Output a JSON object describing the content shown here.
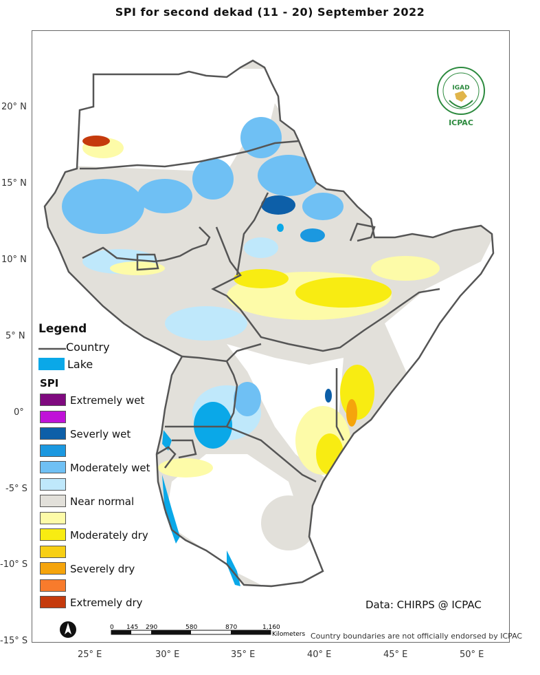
{
  "title": "SPI   for   second  dekad (11 - 20)  September 2022",
  "lat_labels": [
    "20° N",
    "15° N",
    "10° N",
    "5° N",
    "0°",
    "-5° S",
    "-10° S",
    "-15° S"
  ],
  "lon_labels": [
    "25° E",
    "30° E",
    "35° E",
    "40° E",
    "45° E",
    "50° E"
  ],
  "legend": {
    "title": "Legend",
    "country_label": "Country",
    "lake_label": "Lake",
    "spi_title": "SPI",
    "classes": [
      {
        "label": "Extremely wet",
        "color": "#7f0a7f"
      },
      {
        "label": "",
        "color": "#c012d8"
      },
      {
        "label": "Severly wet",
        "color": "#0d5fa8"
      },
      {
        "label": "",
        "color": "#1b98e0"
      },
      {
        "label": "Moderately wet",
        "color": "#6fc0f4"
      },
      {
        "label": "",
        "color": "#bfe8fb"
      },
      {
        "label": "Near normal",
        "color": "#e2e0da"
      },
      {
        "label": "",
        "color": "#fdfba8"
      },
      {
        "label": "Moderately dry",
        "color": "#f8ec12"
      },
      {
        "label": "",
        "color": "#f7cf14"
      },
      {
        "label": "Severely dry",
        "color": "#f5a40c"
      },
      {
        "label": "",
        "color": "#f87b2c"
      },
      {
        "label": "Extremely dry",
        "color": "#c53a0c"
      }
    ],
    "lake_color": "#0aa8e8"
  },
  "credit": "Data: CHIRPS @ ICPAC",
  "disclaimer": "Country boundaries are not officially endorsed by ICPAC",
  "scale": {
    "labels": [
      "0",
      "145",
      "290",
      "580",
      "870",
      "1,160"
    ],
    "unit": "Kilometers"
  },
  "logo": {
    "top_text": "IGAD",
    "bottom_text": "ICPAC"
  },
  "north_arrow": "north-arrow"
}
